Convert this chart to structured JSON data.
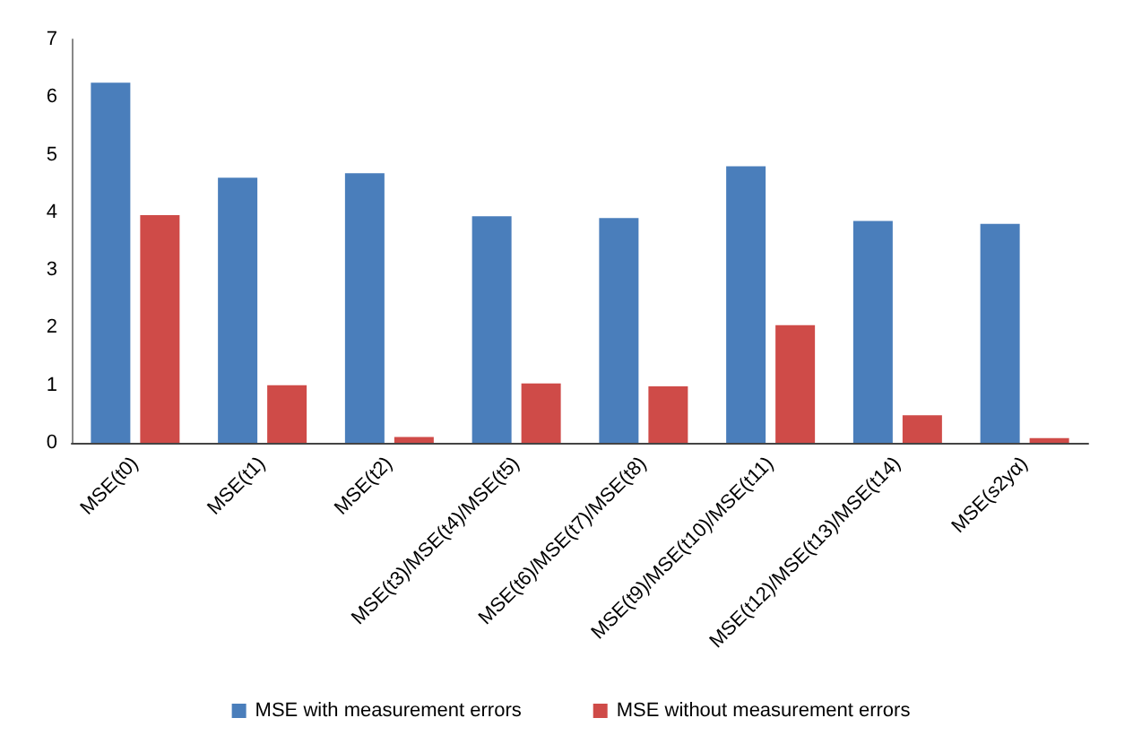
{
  "chart_data": {
    "type": "bar",
    "categories": [
      "MSE(t0)",
      "MSE(t1)",
      "MSE(t2)",
      "MSE(t3)/MSE(t4)/MSE(t5)",
      "MSE(t6)/MSE(t7)/MSE(t8)",
      "MSE(t9)/MSE(t10)/MSE(t11)",
      "MSE(t12)/MSE(t13)/MSE(t14)",
      "MSE(s2yα)"
    ],
    "series": [
      {
        "name": "MSE with measurement errors",
        "color": "#4a7ebb",
        "values": [
          6.25,
          4.6,
          4.68,
          3.93,
          3.9,
          4.8,
          3.85,
          3.8
        ]
      },
      {
        "name": "MSE without measurement errors",
        "color": "#cf4b48",
        "values": [
          3.95,
          1.0,
          0.1,
          1.03,
          0.98,
          2.04,
          0.48,
          0.08
        ]
      }
    ],
    "ylim": [
      0,
      7
    ],
    "yticks": [
      0,
      1,
      2,
      3,
      4,
      5,
      6,
      7
    ],
    "grid": false,
    "legend": "bottom"
  }
}
